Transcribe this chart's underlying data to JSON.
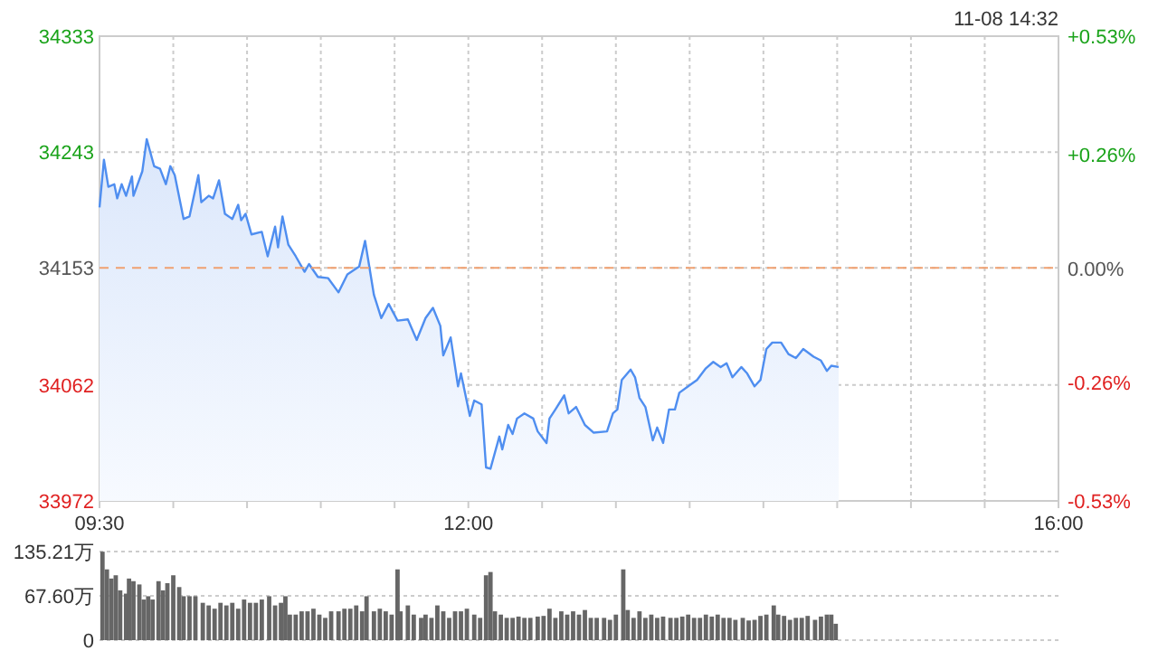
{
  "chart_data": [
    {
      "type": "area",
      "annotations": [
        "11-08 14:32"
      ],
      "xlim": [
        9.5,
        16
      ],
      "xticks": [
        {
          "value": 9.5,
          "label": "09:30"
        },
        {
          "value": 10,
          "label": null
        },
        {
          "value": 10.5,
          "label": null
        },
        {
          "value": 11,
          "label": null
        },
        {
          "value": 11.5,
          "label": null
        },
        {
          "value": 12,
          "label": "12:00"
        },
        {
          "value": 12.5,
          "label": null
        },
        {
          "value": 13,
          "label": null
        },
        {
          "value": 13.5,
          "label": null
        },
        {
          "value": 14,
          "label": null
        },
        {
          "value": 14.5,
          "label": null
        },
        {
          "value": 15,
          "label": null
        },
        {
          "value": 15.5,
          "label": null
        },
        {
          "value": 16,
          "label": "16:00"
        }
      ],
      "ylim": [
        33972,
        34333
      ],
      "yticks": [
        33972,
        34062,
        34153,
        34243,
        34333
      ],
      "y2lim": [
        -0.53,
        0.53
      ],
      "y2ticks": [
        {
          "value": -0.53,
          "label": "-0.53%"
        },
        {
          "value": -0.26,
          "label": "-0.26%"
        },
        {
          "value": 0,
          "label": "0.00%"
        },
        {
          "value": 0.26,
          "label": "+0.26%"
        },
        {
          "value": 0.53,
          "label": "+0.53%"
        }
      ],
      "grid": true,
      "ref_lines": [
        {
          "axis": "y",
          "value": 34153,
          "label": null,
          "color": "#f0a070",
          "line_style": "dashed"
        }
      ],
      "series": [
        {
          "color": "#4f8ef0",
          "x": [
            9.5,
            9.53,
            9.56,
            9.6,
            9.62,
            9.65,
            9.68,
            9.72,
            9.73,
            9.79,
            9.82,
            9.87,
            9.91,
            9.95,
            9.98,
            10.01,
            10.07,
            10.11,
            10.17,
            10.19,
            10.24,
            10.27,
            10.31,
            10.35,
            10.4,
            10.44,
            10.46,
            10.49,
            10.53,
            10.6,
            10.64,
            10.69,
            10.71,
            10.74,
            10.78,
            10.83,
            10.89,
            10.92,
            10.98,
            11.05,
            11.12,
            11.18,
            11.26,
            11.3,
            11.33,
            11.36,
            11.41,
            11.46,
            11.52,
            11.59,
            11.65,
            11.71,
            11.76,
            11.81,
            11.83,
            11.88,
            11.93,
            11.95,
            12.01,
            12.04,
            12.09,
            12.12,
            12.15,
            12.21,
            12.23,
            12.27,
            12.3,
            12.33,
            12.38,
            12.44,
            12.47,
            12.53,
            12.55,
            12.59,
            12.65,
            12.68,
            12.73,
            12.79,
            12.85,
            12.94,
            12.98,
            13.01,
            13.04,
            13.1,
            13.13,
            13.16,
            13.2,
            13.25,
            13.28,
            13.32,
            13.36,
            13.4,
            13.43,
            13.49,
            13.55,
            13.61,
            13.66,
            13.71,
            13.75,
            13.79,
            13.85,
            13.89,
            13.94,
            13.98,
            14.02,
            14.06,
            14.12,
            14.17,
            14.22,
            14.27,
            14.34,
            14.39,
            14.43,
            14.46,
            14.51
          ],
          "values": [
            34200,
            34237,
            34216,
            34218,
            34207,
            34218,
            34209,
            34224,
            34209,
            34228,
            34253,
            34232,
            34230,
            34218,
            34232,
            34225,
            34191,
            34193,
            34225,
            34204,
            34209,
            34207,
            34221,
            34195,
            34191,
            34202,
            34190,
            34195,
            34179,
            34181,
            34162,
            34185,
            34169,
            34193,
            34171,
            34162,
            34150,
            34156,
            34146,
            34145,
            34134,
            34148,
            34154,
            34174,
            34153,
            34132,
            34114,
            34125,
            34112,
            34113,
            34097,
            34114,
            34122,
            34108,
            34085,
            34099,
            34061,
            34071,
            34038,
            34050,
            34047,
            33998,
            33997,
            34022,
            34012,
            34031,
            34024,
            34036,
            34040,
            34036,
            34026,
            34017,
            34036,
            34043,
            34054,
            34040,
            34045,
            34031,
            34025,
            34026,
            34040,
            34043,
            34066,
            34074,
            34068,
            34052,
            34045,
            34019,
            34029,
            34017,
            34043,
            34043,
            34056,
            34061,
            34066,
            34075,
            34080,
            34076,
            34079,
            34068,
            34076,
            34071,
            34061,
            34066,
            34090,
            34095,
            34095,
            34086,
            34083,
            34090,
            34084,
            34081,
            34073,
            34077,
            34076
          ]
        }
      ]
    },
    {
      "type": "bar",
      "xlim": [
        9.5,
        16
      ],
      "ylim": [
        0,
        135.21
      ],
      "yticks": [
        {
          "value": 0,
          "label": "0"
        },
        {
          "value": 67.6,
          "label": "67.60万"
        },
        {
          "value": 135.21,
          "label": "135.21万"
        }
      ],
      "grid": "y",
      "tick_labels": "y",
      "series": [
        {
          "color": "#666666",
          "x": [
            9.52,
            9.55,
            9.58,
            9.61,
            9.64,
            9.68,
            9.7,
            9.73,
            9.77,
            9.8,
            9.83,
            9.86,
            9.9,
            9.93,
            9.96,
            10,
            10.04,
            10.07,
            10.11,
            10.15,
            10.2,
            10.24,
            10.28,
            10.32,
            10.36,
            10.4,
            10.44,
            10.48,
            10.52,
            10.56,
            10.6,
            10.65,
            10.69,
            10.73,
            10.76,
            10.79,
            10.83,
            10.87,
            10.91,
            10.95,
            10.99,
            11.03,
            11.07,
            11.12,
            11.16,
            11.2,
            11.24,
            11.28,
            11.31,
            11.36,
            11.4,
            11.44,
            11.48,
            11.52,
            11.54,
            11.59,
            11.63,
            11.68,
            11.71,
            11.75,
            11.79,
            11.83,
            11.87,
            11.91,
            11.95,
            11.99,
            12.04,
            12.08,
            12.12,
            12.15,
            12.18,
            12.22,
            12.26,
            12.3,
            12.34,
            12.38,
            12.42,
            12.47,
            12.51,
            12.55,
            12.59,
            12.63,
            12.67,
            12.71,
            12.75,
            12.79,
            12.83,
            12.87,
            12.92,
            12.96,
            13,
            13.05,
            13.08,
            13.12,
            13.16,
            13.2,
            13.24,
            13.28,
            13.32,
            13.37,
            13.41,
            13.45,
            13.49,
            13.53,
            13.57,
            13.61,
            13.65,
            13.69,
            13.73,
            13.77,
            13.81,
            13.86,
            13.9,
            13.94,
            13.98,
            14.02,
            14.07,
            14.1,
            14.14,
            14.18,
            14.22,
            14.26,
            14.3,
            14.35,
            14.39,
            14.43,
            14.46,
            14.49
          ],
          "values": [
            135,
            108,
            94,
            99,
            76,
            71,
            94,
            90,
            85,
            62,
            67,
            62,
            90,
            76,
            87,
            99,
            81,
            67,
            67,
            67,
            57,
            53,
            48,
            57,
            53,
            57,
            48,
            62,
            57,
            57,
            62,
            67,
            53,
            57,
            67,
            39,
            39,
            44,
            44,
            48,
            39,
            34,
            44,
            44,
            48,
            48,
            53,
            44,
            67,
            44,
            48,
            44,
            39,
            108,
            44,
            53,
            39,
            34,
            39,
            34,
            53,
            44,
            34,
            44,
            44,
            48,
            39,
            34,
            99,
            104,
            44,
            39,
            34,
            34,
            36,
            34,
            34,
            36,
            37,
            48,
            34,
            44,
            39,
            44,
            39,
            46,
            34,
            34,
            34,
            31,
            39,
            108,
            46,
            34,
            44,
            34,
            39,
            34,
            36,
            34,
            34,
            36,
            39,
            34,
            34,
            39,
            36,
            39,
            34,
            34,
            31,
            34,
            30,
            31,
            37,
            39,
            53,
            39,
            37,
            31,
            34,
            34,
            37,
            31,
            36,
            39,
            39,
            25
          ]
        }
      ]
    }
  ]
}
